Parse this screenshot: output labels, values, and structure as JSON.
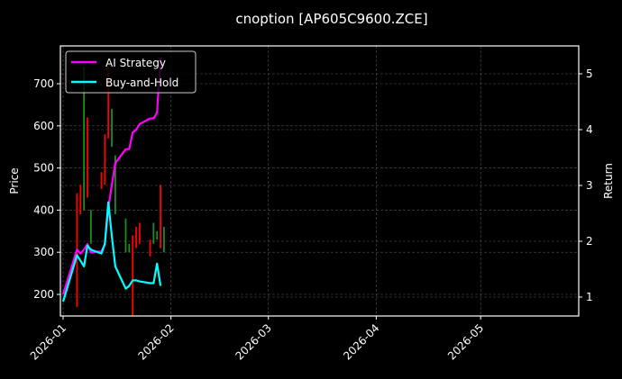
{
  "chart_data": {
    "type": "line",
    "title": "cnoption [AP605C9600.ZCE]",
    "xlabel": "",
    "ylabel": "Price",
    "ylabel_right": "Return",
    "x_ticks": [
      "2026-01",
      "2026-02",
      "2026-03",
      "2026-04",
      "2026-05"
    ],
    "y_ticks_left": [
      200,
      300,
      400,
      500,
      600,
      700
    ],
    "y_ticks_right": [
      1,
      2,
      3,
      4,
      5
    ],
    "ylim_left": [
      150,
      790
    ],
    "ylim_right": [
      0.65,
      5.45
    ],
    "xlim": [
      "2025-12-31",
      "2026-05-28"
    ],
    "grid": true,
    "legend_position": "upper left",
    "background": "#000000",
    "series": [
      {
        "name": "AI Strategy",
        "axis": "right",
        "color": "#ff00ff",
        "x": [
          "2026-01-01",
          "2026-01-05",
          "2026-01-06",
          "2026-01-07",
          "2026-01-08",
          "2026-01-09",
          "2026-01-12",
          "2026-01-13",
          "2026-01-14",
          "2026-01-15",
          "2026-01-16",
          "2026-01-19",
          "2026-01-20",
          "2026-01-21",
          "2026-01-22",
          "2026-01-23",
          "2026-01-26",
          "2026-01-27",
          "2026-01-28",
          "2026-01-29"
        ],
        "values": [
          1.05,
          1.85,
          1.78,
          1.85,
          1.95,
          1.8,
          1.82,
          1.95,
          2.6,
          3.0,
          3.4,
          3.65,
          3.65,
          3.95,
          4.0,
          4.1,
          4.2,
          4.2,
          4.3,
          5.3
        ]
      },
      {
        "name": "Buy-and-Hold",
        "axis": "right",
        "color": "#00ffff",
        "x": [
          "2026-01-01",
          "2026-01-05",
          "2026-01-06",
          "2026-01-07",
          "2026-01-08",
          "2026-01-09",
          "2026-01-12",
          "2026-01-13",
          "2026-01-14",
          "2026-01-15",
          "2026-01-16",
          "2026-01-19",
          "2026-01-20",
          "2026-01-21",
          "2026-01-22",
          "2026-01-23",
          "2026-01-26",
          "2026-01-27",
          "2026-01-28",
          "2026-01-29"
        ],
        "values": [
          0.92,
          1.75,
          1.65,
          1.55,
          1.92,
          1.85,
          1.78,
          1.95,
          2.7,
          2.1,
          1.55,
          1.15,
          1.2,
          1.3,
          1.3,
          1.28,
          1.25,
          1.25,
          1.6,
          1.2
        ]
      }
    ],
    "candles": {
      "axis": "left",
      "up_color": "#228b22",
      "down_color": "#ff0000",
      "items": [
        {
          "date": "2026-01-05",
          "high": 440,
          "low": 170,
          "dir": "down"
        },
        {
          "date": "2026-01-06",
          "high": 460,
          "low": 390,
          "dir": "down"
        },
        {
          "date": "2026-01-07",
          "high": 740,
          "low": 400,
          "dir": "up"
        },
        {
          "date": "2026-01-08",
          "high": 620,
          "low": 430,
          "dir": "down"
        },
        {
          "date": "2026-01-09",
          "high": 400,
          "low": 320,
          "dir": "up"
        },
        {
          "date": "2026-01-12",
          "high": 490,
          "low": 450,
          "dir": "down"
        },
        {
          "date": "2026-01-13",
          "high": 580,
          "low": 460,
          "dir": "down"
        },
        {
          "date": "2026-01-14",
          "high": 740,
          "low": 570,
          "dir": "down"
        },
        {
          "date": "2026-01-15",
          "high": 640,
          "low": 550,
          "dir": "up"
        },
        {
          "date": "2026-01-16",
          "high": 530,
          "low": 390,
          "dir": "up"
        },
        {
          "date": "2026-01-19",
          "high": 380,
          "low": 300,
          "dir": "up"
        },
        {
          "date": "2026-01-20",
          "high": 320,
          "low": 300,
          "dir": "up"
        },
        {
          "date": "2026-01-21",
          "high": 340,
          "low": 150,
          "dir": "down"
        },
        {
          "date": "2026-01-22",
          "high": 360,
          "low": 310,
          "dir": "down"
        },
        {
          "date": "2026-01-23",
          "high": 370,
          "low": 320,
          "dir": "down"
        },
        {
          "date": "2026-01-26",
          "high": 330,
          "low": 290,
          "dir": "down"
        },
        {
          "date": "2026-01-27",
          "high": 370,
          "low": 320,
          "dir": "up"
        },
        {
          "date": "2026-01-28",
          "high": 350,
          "low": 330,
          "dir": "up"
        },
        {
          "date": "2026-01-29",
          "high": 460,
          "low": 310,
          "dir": "down"
        },
        {
          "date": "2026-01-30",
          "high": 360,
          "low": 300,
          "dir": "up"
        }
      ]
    }
  },
  "title": "cnoption [AP605C9600.ZCE]",
  "axes": {
    "left_label": "Price",
    "right_label": "Return",
    "x_ticks": [
      "2026-01",
      "2026-02",
      "2026-03",
      "2026-04",
      "2026-05"
    ],
    "left_ticks": [
      "200",
      "300",
      "400",
      "500",
      "600",
      "700"
    ],
    "right_ticks": [
      "1",
      "2",
      "3",
      "4",
      "5"
    ]
  },
  "legend": {
    "items": [
      {
        "label": "AI Strategy",
        "color": "#ff00ff"
      },
      {
        "label": "Buy-and-Hold",
        "color": "#00ffff"
      }
    ]
  }
}
